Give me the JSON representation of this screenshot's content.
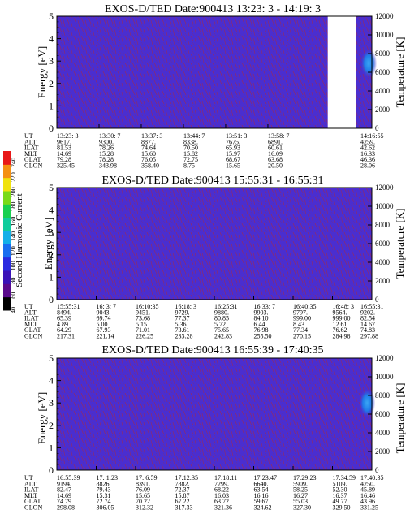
{
  "colors": {
    "background": "#ffffff",
    "spectrogram_fill": "#4a2ed0",
    "noise_streak": "#8a2a70",
    "empty_region": "#ffffff",
    "hot_spot": "#1f7be8"
  },
  "colorbar": {
    "label": "Second Harmonic Current",
    "ticks": [
      "40",
      "60",
      "80",
      "100",
      "120",
      "140",
      "160",
      "180",
      "200",
      "220",
      "240"
    ],
    "scale_colors": [
      "#000000",
      "#5a0a8c",
      "#3a12b8",
      "#2a2ae0",
      "#1a6ef0",
      "#14b0e8",
      "#10cc9c",
      "#18d050",
      "#7ada18",
      "#f0e20e",
      "#f49012",
      "#e81818"
    ]
  },
  "chart_data": [
    {
      "type": "heatmap",
      "title": "EXOS-D/TED   Date:900413   13:23: 3 - 14:19: 3",
      "ylabel": "Energy [eV]",
      "y2label": "Temperature [K]",
      "ylim": [
        0,
        5
      ],
      "y_ticks": [
        "0",
        "1",
        "2",
        "3",
        "4",
        "5"
      ],
      "y2lim": [
        0,
        12000
      ],
      "y2_ticks": [
        "0",
        "2000",
        "4000",
        "6000",
        "8000",
        "10000",
        "12000"
      ],
      "data_coverage": [
        [
          0,
          0.86
        ],
        [
          0.95,
          1.0
        ]
      ],
      "hot_spots": [
        {
          "x": 0.99,
          "energy": 2.9
        }
      ],
      "ephemeris": {
        "rows": [
          {
            "label": "UT",
            "values": [
              "13:23: 3",
              "13:30: 7",
              "13:37: 3",
              "13:44: 7",
              "13:51: 3",
              "13:58: 7",
              "14:16:55"
            ]
          },
          {
            "label": "ALT",
            "values": [
              "9617.",
              "9300.",
              "8877.",
              "8338.",
              "7675.",
              "6891.",
              "4259."
            ]
          },
          {
            "label": "ILAT",
            "values": [
              "81.53",
              "78.26",
              "74.64",
              "70.50",
              "65.93",
              "60.61",
              "42.62"
            ]
          },
          {
            "label": "MLT",
            "values": [
              "14.69",
              "15.28",
              "15.60",
              "15.82",
              "15.97",
              "16.09",
              "16.33"
            ]
          },
          {
            "label": "GLAT",
            "values": [
              "79.28",
              "78.28",
              "76.05",
              "72.75",
              "68.67",
              "63.68",
              "46.36"
            ]
          },
          {
            "label": "GLON",
            "values": [
              "325.45",
              "343.98",
              "358.40",
              "8.75",
              "15.65",
              "20.50",
              "28.06"
            ]
          }
        ],
        "x_positions": [
          0.0,
          0.134,
          0.268,
          0.402,
          0.536,
          0.67,
          1.0
        ]
      }
    },
    {
      "type": "heatmap",
      "title": "EXOS-D/TED   Date:900413   15:55:31 - 16:55:31",
      "ylabel": "Energy [eV]",
      "y2label": "Temperature [K]",
      "ylim": [
        0,
        5
      ],
      "y_ticks": [
        "0",
        "1",
        "2",
        "3",
        "4",
        "5"
      ],
      "y2lim": [
        0,
        12000
      ],
      "y2_ticks": [
        "0",
        "2000",
        "4000",
        "6000",
        "8000",
        "10000",
        "12000"
      ],
      "data_coverage": [
        [
          0,
          1.0
        ]
      ],
      "hot_spots": [],
      "ephemeris": {
        "rows": [
          {
            "label": "UT",
            "values": [
              "15:55:31",
              "16: 3: 7",
              "16:10:35",
              "16:18: 3",
              "16:25:31",
              "16:33: 7",
              "16:40:35",
              "16:48: 3",
              "16:55:31"
            ]
          },
          {
            "label": "ALT",
            "values": [
              "8494.",
              "9043.",
              "9451.",
              "9729.",
              "9880.",
              "9903.",
              "9797.",
              "9564.",
              "9202."
            ]
          },
          {
            "label": "ILAT",
            "values": [
              "65.39",
              "69.74",
              "73.68",
              "77.37",
              "80.85",
              "84.10",
              "999.00",
              "999.00",
              "82.54"
            ]
          },
          {
            "label": "MLT",
            "values": [
              "4.89",
              "5.00",
              "5.15",
              "5.36",
              "5.72",
              "6.44",
              "8.43",
              "12.61",
              "14.67"
            ]
          },
          {
            "label": "GLAT",
            "values": [
              "64.29",
              "67.93",
              "71.01",
              "73.61",
              "75.65",
              "76.98",
              "77.34",
              "76.62",
              "74.83"
            ]
          },
          {
            "label": "GLON",
            "values": [
              "217.31",
              "221.14",
              "226.25",
              "233.28",
              "242.83",
              "255.50",
              "270.15",
              "284.98",
              "297.88"
            ]
          }
        ],
        "x_positions": [
          0.0,
          0.125,
          0.25,
          0.375,
          0.5,
          0.625,
          0.75,
          0.875,
          1.0
        ]
      }
    },
    {
      "type": "heatmap",
      "title": "EXOS-D/TED   Date:900413   16:55:39 - 17:40:35",
      "ylabel": "Energy [eV]",
      "y2label": "Temperature [K]",
      "ylim": [
        0,
        5
      ],
      "y_ticks": [
        "0",
        "1",
        "2",
        "3",
        "4",
        "5"
      ],
      "y2lim": [
        0,
        12000
      ],
      "y2_ticks": [
        "0",
        "2000",
        "4000",
        "6000",
        "8000",
        "10000",
        "12000"
      ],
      "data_coverage": [
        [
          0,
          1.0
        ]
      ],
      "hot_spots": [
        {
          "x": 0.985,
          "energy": 3.0
        }
      ],
      "ephemeris": {
        "rows": [
          {
            "label": "UT",
            "values": [
              "16:55:39",
              "17: 1:23",
              "17: 6:59",
              "17:12:35",
              "17:18:11",
              "17:23:47",
              "17:29:23",
              "17:34:59",
              "17:40:35"
            ]
          },
          {
            "label": "ALT",
            "values": [
              "9194.",
              "8826.",
              "8391.",
              "7882.",
              "7299.",
              "6640.",
              "5909.",
              "5109.",
              "4250."
            ]
          },
          {
            "label": "ILAT",
            "values": [
              "82.47",
              "79.43",
              "76.09",
              "72.37",
              "68.22",
              "63.54",
              "58.25",
              "52.30",
              "45.89"
            ]
          },
          {
            "label": "MLT",
            "values": [
              "14.69",
              "15.31",
              "15.65",
              "15.87",
              "16.03",
              "16.16",
              "16.27",
              "16.37",
              "16.46"
            ]
          },
          {
            "label": "GLAT",
            "values": [
              "74.79",
              "72.74",
              "70.22",
              "67.22",
              "63.72",
              "59.67",
              "55.03",
              "49.77",
              "43.96"
            ]
          },
          {
            "label": "GLON",
            "values": [
              "298.08",
              "306.05",
              "312.32",
              "317.33",
              "321.36",
              "324.62",
              "327.30",
              "329.50",
              "331.25"
            ]
          }
        ],
        "x_positions": [
          0.0,
          0.125,
          0.25,
          0.375,
          0.5,
          0.625,
          0.75,
          0.875,
          1.0
        ]
      }
    }
  ]
}
